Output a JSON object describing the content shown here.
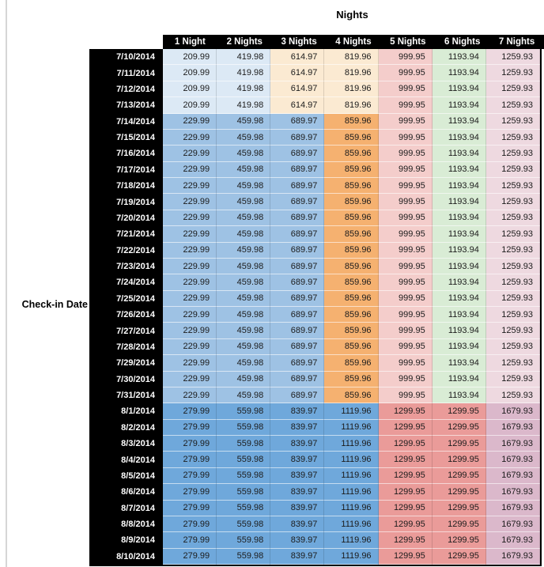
{
  "table": {
    "title": "Nights",
    "row_axis_label": "Check-in Date",
    "column_headers": [
      "1 Night",
      "2 Nights",
      "3 Nights",
      "4 Nights",
      "5 Nights",
      "6 Nights",
      "7 Nights"
    ],
    "header_bg": "#000000",
    "header_text_color": "#ffffff",
    "date_column_bg": "#000000",
    "date_text_color": "#ffffff",
    "value_text_color": "#1c1c1c",
    "row_groups": {
      "early_july": [
        "#DCE9F5",
        "#DCE9F5",
        "#FBEAD2",
        "#FBEAD2",
        "#F4CDCB",
        "#D9ECD5",
        "#EED9E0"
      ],
      "mid_july": [
        "#9EC2E4",
        "#9EC2E4",
        "#9EC2E4",
        "#F5B170",
        "#F4CDCB",
        "#D9ECD5",
        "#EED9E0"
      ],
      "august": [
        "#6FA8DB",
        "#6FA8DB",
        "#6FA8DB",
        "#6FA8DB",
        "#EA9B99",
        "#EA9B99",
        "#DBB8CB"
      ]
    },
    "rows": [
      {
        "date": "7/10/2014",
        "group": "early_july",
        "values": [
          "209.99",
          "419.98",
          "614.97",
          "819.96",
          "999.95",
          "1193.94",
          "1259.93"
        ]
      },
      {
        "date": "7/11/2014",
        "group": "early_july",
        "values": [
          "209.99",
          "419.98",
          "614.97",
          "819.96",
          "999.95",
          "1193.94",
          "1259.93"
        ]
      },
      {
        "date": "7/12/2014",
        "group": "early_july",
        "values": [
          "209.99",
          "419.98",
          "614.97",
          "819.96",
          "999.95",
          "1193.94",
          "1259.93"
        ]
      },
      {
        "date": "7/13/2014",
        "group": "early_july",
        "values": [
          "209.99",
          "419.98",
          "614.97",
          "819.96",
          "999.95",
          "1193.94",
          "1259.93"
        ]
      },
      {
        "date": "7/14/2014",
        "group": "mid_july",
        "values": [
          "229.99",
          "459.98",
          "689.97",
          "859.96",
          "999.95",
          "1193.94",
          "1259.93"
        ]
      },
      {
        "date": "7/15/2014",
        "group": "mid_july",
        "values": [
          "229.99",
          "459.98",
          "689.97",
          "859.96",
          "999.95",
          "1193.94",
          "1259.93"
        ]
      },
      {
        "date": "7/16/2014",
        "group": "mid_july",
        "values": [
          "229.99",
          "459.98",
          "689.97",
          "859.96",
          "999.95",
          "1193.94",
          "1259.93"
        ]
      },
      {
        "date": "7/17/2014",
        "group": "mid_july",
        "values": [
          "229.99",
          "459.98",
          "689.97",
          "859.96",
          "999.95",
          "1193.94",
          "1259.93"
        ]
      },
      {
        "date": "7/18/2014",
        "group": "mid_july",
        "values": [
          "229.99",
          "459.98",
          "689.97",
          "859.96",
          "999.95",
          "1193.94",
          "1259.93"
        ]
      },
      {
        "date": "7/19/2014",
        "group": "mid_july",
        "values": [
          "229.99",
          "459.98",
          "689.97",
          "859.96",
          "999.95",
          "1193.94",
          "1259.93"
        ]
      },
      {
        "date": "7/20/2014",
        "group": "mid_july",
        "values": [
          "229.99",
          "459.98",
          "689.97",
          "859.96",
          "999.95",
          "1193.94",
          "1259.93"
        ]
      },
      {
        "date": "7/21/2014",
        "group": "mid_july",
        "values": [
          "229.99",
          "459.98",
          "689.97",
          "859.96",
          "999.95",
          "1193.94",
          "1259.93"
        ]
      },
      {
        "date": "7/22/2014",
        "group": "mid_july",
        "values": [
          "229.99",
          "459.98",
          "689.97",
          "859.96",
          "999.95",
          "1193.94",
          "1259.93"
        ]
      },
      {
        "date": "7/23/2014",
        "group": "mid_july",
        "values": [
          "229.99",
          "459.98",
          "689.97",
          "859.96",
          "999.95",
          "1193.94",
          "1259.93"
        ]
      },
      {
        "date": "7/24/2014",
        "group": "mid_july",
        "values": [
          "229.99",
          "459.98",
          "689.97",
          "859.96",
          "999.95",
          "1193.94",
          "1259.93"
        ]
      },
      {
        "date": "7/25/2014",
        "group": "mid_july",
        "values": [
          "229.99",
          "459.98",
          "689.97",
          "859.96",
          "999.95",
          "1193.94",
          "1259.93"
        ]
      },
      {
        "date": "7/26/2014",
        "group": "mid_july",
        "values": [
          "229.99",
          "459.98",
          "689.97",
          "859.96",
          "999.95",
          "1193.94",
          "1259.93"
        ]
      },
      {
        "date": "7/27/2014",
        "group": "mid_july",
        "values": [
          "229.99",
          "459.98",
          "689.97",
          "859.96",
          "999.95",
          "1193.94",
          "1259.93"
        ]
      },
      {
        "date": "7/28/2014",
        "group": "mid_july",
        "values": [
          "229.99",
          "459.98",
          "689.97",
          "859.96",
          "999.95",
          "1193.94",
          "1259.93"
        ]
      },
      {
        "date": "7/29/2014",
        "group": "mid_july",
        "values": [
          "229.99",
          "459.98",
          "689.97",
          "859.96",
          "999.95",
          "1193.94",
          "1259.93"
        ]
      },
      {
        "date": "7/30/2014",
        "group": "mid_july",
        "values": [
          "229.99",
          "459.98",
          "689.97",
          "859.96",
          "999.95",
          "1193.94",
          "1259.93"
        ]
      },
      {
        "date": "7/31/2014",
        "group": "mid_july",
        "values": [
          "229.99",
          "459.98",
          "689.97",
          "859.96",
          "999.95",
          "1193.94",
          "1259.93"
        ]
      },
      {
        "date": "8/1/2014",
        "group": "august",
        "values": [
          "279.99",
          "559.98",
          "839.97",
          "1119.96",
          "1299.95",
          "1299.95",
          "1679.93"
        ]
      },
      {
        "date": "8/2/2014",
        "group": "august",
        "values": [
          "279.99",
          "559.98",
          "839.97",
          "1119.96",
          "1299.95",
          "1299.95",
          "1679.93"
        ]
      },
      {
        "date": "8/3/2014",
        "group": "august",
        "values": [
          "279.99",
          "559.98",
          "839.97",
          "1119.96",
          "1299.95",
          "1299.95",
          "1679.93"
        ]
      },
      {
        "date": "8/4/2014",
        "group": "august",
        "values": [
          "279.99",
          "559.98",
          "839.97",
          "1119.96",
          "1299.95",
          "1299.95",
          "1679.93"
        ]
      },
      {
        "date": "8/5/2014",
        "group": "august",
        "values": [
          "279.99",
          "559.98",
          "839.97",
          "1119.96",
          "1299.95",
          "1299.95",
          "1679.93"
        ]
      },
      {
        "date": "8/6/2014",
        "group": "august",
        "values": [
          "279.99",
          "559.98",
          "839.97",
          "1119.96",
          "1299.95",
          "1299.95",
          "1679.93"
        ]
      },
      {
        "date": "8/7/2014",
        "group": "august",
        "values": [
          "279.99",
          "559.98",
          "839.97",
          "1119.96",
          "1299.95",
          "1299.95",
          "1679.93"
        ]
      },
      {
        "date": "8/8/2014",
        "group": "august",
        "values": [
          "279.99",
          "559.98",
          "839.97",
          "1119.96",
          "1299.95",
          "1299.95",
          "1679.93"
        ]
      },
      {
        "date": "8/9/2014",
        "group": "august",
        "values": [
          "279.99",
          "559.98",
          "839.97",
          "1119.96",
          "1299.95",
          "1299.95",
          "1679.93"
        ]
      },
      {
        "date": "8/10/2014",
        "group": "august",
        "values": [
          "279.99",
          "559.98",
          "839.97",
          "1119.96",
          "1299.95",
          "1299.95",
          "1679.93"
        ]
      }
    ]
  }
}
